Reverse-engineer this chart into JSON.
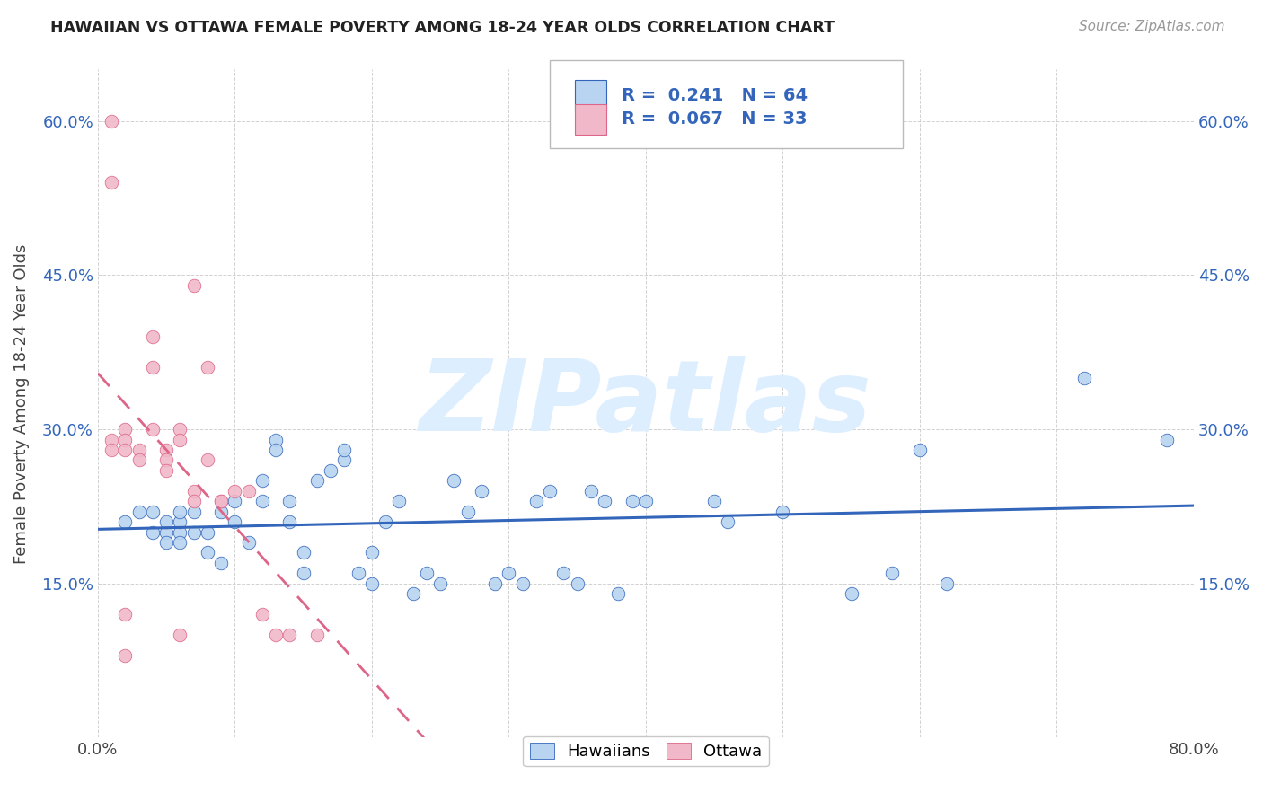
{
  "title": "HAWAIIAN VS OTTAWA FEMALE POVERTY AMONG 18-24 YEAR OLDS CORRELATION CHART",
  "source": "Source: ZipAtlas.com",
  "ylabel": "Female Poverty Among 18-24 Year Olds",
  "xlim": [
    0,
    0.8
  ],
  "ylim": [
    0,
    0.65
  ],
  "yticks": [
    0.15,
    0.3,
    0.45,
    0.6
  ],
  "ytick_labels": [
    "15.0%",
    "30.0%",
    "45.0%",
    "60.0%"
  ],
  "xtick_labels": [
    "0.0%",
    "",
    "",
    "",
    "",
    "",
    "",
    "",
    "80.0%"
  ],
  "R_hawaiian": 0.241,
  "N_hawaiian": 64,
  "R_ottawa": 0.067,
  "N_ottawa": 33,
  "hawaiian_color": "#b8d4f0",
  "ottawa_color": "#f0b8c8",
  "hawaiian_line_color": "#3366bb",
  "ottawa_line_color": "#dd6688",
  "watermark": "ZIPatlas",
  "watermark_color": "#ddeeff",
  "background_color": "#ffffff",
  "hawaiian_x": [
    0.02,
    0.03,
    0.04,
    0.04,
    0.05,
    0.05,
    0.05,
    0.06,
    0.06,
    0.06,
    0.06,
    0.07,
    0.07,
    0.08,
    0.08,
    0.09,
    0.09,
    0.1,
    0.1,
    0.11,
    0.12,
    0.12,
    0.13,
    0.13,
    0.14,
    0.14,
    0.15,
    0.15,
    0.16,
    0.17,
    0.18,
    0.18,
    0.19,
    0.2,
    0.2,
    0.21,
    0.22,
    0.23,
    0.24,
    0.25,
    0.26,
    0.27,
    0.28,
    0.29,
    0.3,
    0.31,
    0.32,
    0.33,
    0.34,
    0.35,
    0.36,
    0.37,
    0.38,
    0.39,
    0.4,
    0.45,
    0.46,
    0.5,
    0.55,
    0.58,
    0.6,
    0.62,
    0.72,
    0.78
  ],
  "hawaiian_y": [
    0.21,
    0.22,
    0.2,
    0.22,
    0.2,
    0.21,
    0.19,
    0.2,
    0.21,
    0.19,
    0.22,
    0.2,
    0.22,
    0.18,
    0.2,
    0.17,
    0.22,
    0.23,
    0.21,
    0.19,
    0.25,
    0.23,
    0.29,
    0.28,
    0.23,
    0.21,
    0.16,
    0.18,
    0.25,
    0.26,
    0.27,
    0.28,
    0.16,
    0.15,
    0.18,
    0.21,
    0.23,
    0.14,
    0.16,
    0.15,
    0.25,
    0.22,
    0.24,
    0.15,
    0.16,
    0.15,
    0.23,
    0.24,
    0.16,
    0.15,
    0.24,
    0.23,
    0.14,
    0.23,
    0.23,
    0.23,
    0.21,
    0.22,
    0.14,
    0.16,
    0.28,
    0.15,
    0.35,
    0.29
  ],
  "ottawa_x": [
    0.01,
    0.01,
    0.01,
    0.01,
    0.02,
    0.02,
    0.02,
    0.02,
    0.02,
    0.03,
    0.03,
    0.04,
    0.04,
    0.04,
    0.05,
    0.05,
    0.05,
    0.06,
    0.06,
    0.06,
    0.07,
    0.07,
    0.07,
    0.08,
    0.08,
    0.09,
    0.09,
    0.1,
    0.11,
    0.12,
    0.13,
    0.14,
    0.16
  ],
  "ottawa_y": [
    0.6,
    0.54,
    0.29,
    0.28,
    0.3,
    0.29,
    0.28,
    0.12,
    0.08,
    0.28,
    0.27,
    0.39,
    0.36,
    0.3,
    0.28,
    0.27,
    0.26,
    0.3,
    0.29,
    0.1,
    0.44,
    0.24,
    0.23,
    0.36,
    0.27,
    0.23,
    0.23,
    0.24,
    0.24,
    0.12,
    0.1,
    0.1,
    0.1
  ]
}
